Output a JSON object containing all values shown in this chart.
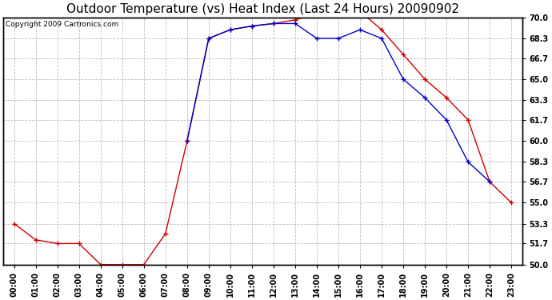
{
  "title": "Outdoor Temperature (vs) Heat Index (Last 24 Hours) 20090902",
  "copyright": "Copyright 2009 Cartronics.com",
  "x_labels": [
    "00:00",
    "01:00",
    "02:00",
    "03:00",
    "04:00",
    "05:00",
    "06:00",
    "07:00",
    "08:00",
    "09:00",
    "10:00",
    "11:00",
    "12:00",
    "13:00",
    "14:00",
    "15:00",
    "16:00",
    "17:00",
    "18:00",
    "19:00",
    "20:00",
    "21:00",
    "22:00",
    "23:00"
  ],
  "temp_data": [
    53.3,
    52.0,
    51.7,
    51.7,
    50.0,
    50.0,
    50.0,
    52.5,
    60.0,
    68.3,
    69.0,
    69.3,
    69.5,
    69.8,
    70.3,
    70.5,
    70.5,
    69.0,
    67.0,
    65.0,
    63.5,
    61.7,
    56.7,
    55.0
  ],
  "heat_index_data": [
    null,
    null,
    null,
    null,
    null,
    null,
    null,
    null,
    60.0,
    68.3,
    69.0,
    69.3,
    69.5,
    69.5,
    68.3,
    68.3,
    69.0,
    68.3,
    65.0,
    63.5,
    61.7,
    58.3,
    56.7,
    null
  ],
  "temp_color": "#cc0000",
  "heat_color": "#0000cc",
  "ylim": [
    50.0,
    70.0
  ],
  "yticks": [
    50.0,
    51.7,
    53.3,
    55.0,
    56.7,
    58.3,
    60.0,
    61.7,
    63.3,
    65.0,
    66.7,
    68.3,
    70.0
  ],
  "background_color": "#ffffff",
  "grid_color": "#bbbbbb",
  "title_fontsize": 11,
  "axis_fontsize": 7,
  "copyright_fontsize": 6.5
}
